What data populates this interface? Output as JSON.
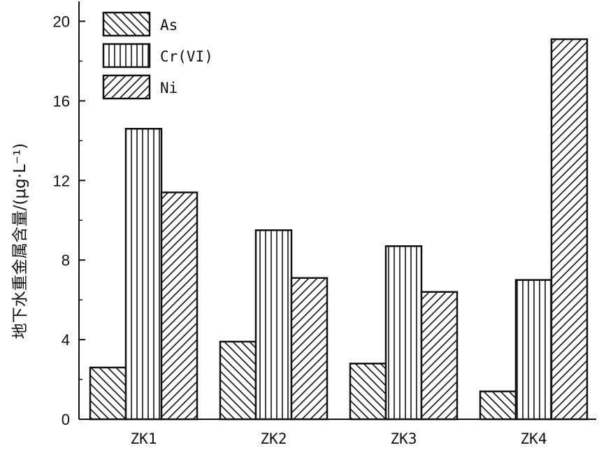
{
  "chart_data": {
    "type": "bar",
    "categories": [
      "ZK1",
      "ZK2",
      "ZK3",
      "ZK4"
    ],
    "series": [
      {
        "name": "As",
        "values": [
          2.6,
          3.9,
          2.8,
          1.4
        ],
        "pattern": "backslash"
      },
      {
        "name": "Cr(VI)",
        "values": [
          14.6,
          9.5,
          8.7,
          7.0
        ],
        "pattern": "vertical"
      },
      {
        "name": "Ni",
        "values": [
          11.4,
          7.1,
          6.4,
          19.1
        ],
        "pattern": "slash"
      }
    ],
    "ylabel": "地下水重金属含量/(μg·L⁻¹)",
    "ylim": [
      0,
      21
    ],
    "yticks": [
      0,
      4,
      8,
      12,
      16,
      20
    ],
    "legend_position": "top-left",
    "grid": false
  }
}
